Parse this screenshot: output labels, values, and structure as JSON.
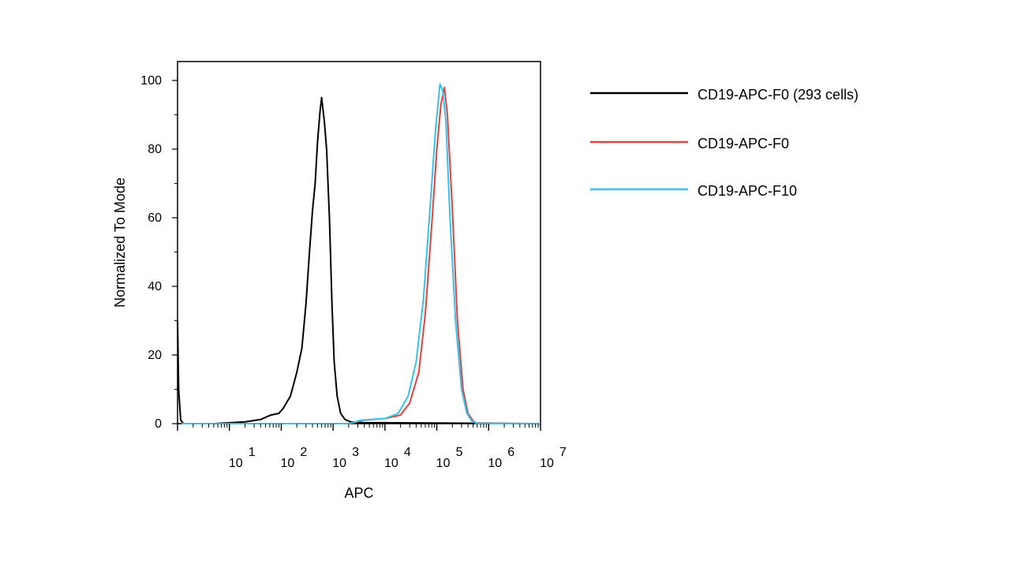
{
  "chart_data": {
    "type": "line",
    "xlabel": "APC",
    "ylabel": "Normalized To Mode",
    "x_scale": "log",
    "xlim": [
      1,
      10000000
    ],
    "ylim": [
      0,
      100
    ],
    "y_ticks": [
      "0",
      "20",
      "40",
      "60",
      "80",
      "100"
    ],
    "x_ticks": [
      {
        "base": "10",
        "exp": "1"
      },
      {
        "base": "10",
        "exp": "2"
      },
      {
        "base": "10",
        "exp": "3"
      },
      {
        "base": "10",
        "exp": "4"
      },
      {
        "base": "10",
        "exp": "5"
      },
      {
        "base": "10",
        "exp": "6"
      },
      {
        "base": "10",
        "exp": "7"
      }
    ],
    "legend_position": "right",
    "series": [
      {
        "name": "CD19-APC-F0 (293 cells)",
        "color": "#000000",
        "points": [
          [
            1,
            30
          ],
          [
            1.05,
            10
          ],
          [
            1.15,
            1
          ],
          [
            1.3,
            0
          ],
          [
            5,
            0
          ],
          [
            20,
            0.5
          ],
          [
            40,
            1.2
          ],
          [
            63,
            2.5
          ],
          [
            90,
            3
          ],
          [
            110,
            4.5
          ],
          [
            150,
            8
          ],
          [
            200,
            15
          ],
          [
            250,
            22
          ],
          [
            300,
            35
          ],
          [
            350,
            50
          ],
          [
            400,
            62
          ],
          [
            450,
            70
          ],
          [
            500,
            82
          ],
          [
            560,
            91
          ],
          [
            600,
            95
          ],
          [
            680,
            88
          ],
          [
            750,
            80
          ],
          [
            850,
            60
          ],
          [
            950,
            35
          ],
          [
            1050,
            18
          ],
          [
            1200,
            8
          ],
          [
            1400,
            3
          ],
          [
            1700,
            1.2
          ],
          [
            2200,
            0.5
          ],
          [
            3500,
            0.3
          ],
          [
            10000000,
            0
          ]
        ]
      },
      {
        "name": "CD19-APC-F0",
        "color": "#e8403a",
        "points": [
          [
            1.2,
            0
          ],
          [
            2000,
            0
          ],
          [
            4000,
            1
          ],
          [
            10000,
            1.5
          ],
          [
            20000,
            2.5
          ],
          [
            30000,
            6
          ],
          [
            45000,
            15
          ],
          [
            60000,
            32
          ],
          [
            80000,
            58
          ],
          [
            100000,
            80
          ],
          [
            120000,
            93
          ],
          [
            140000,
            98
          ],
          [
            160000,
            90
          ],
          [
            200000,
            62
          ],
          [
            250000,
            30
          ],
          [
            320000,
            10
          ],
          [
            400000,
            3
          ],
          [
            500000,
            0.8
          ],
          [
            600000,
            0
          ],
          [
            10000000,
            0
          ]
        ]
      },
      {
        "name": "CD19-APC-F10",
        "color": "#30c4ee",
        "points": [
          [
            1.2,
            0
          ],
          [
            2000,
            0
          ],
          [
            3500,
            1
          ],
          [
            10000,
            1.5
          ],
          [
            18000,
            3
          ],
          [
            28000,
            8
          ],
          [
            40000,
            18
          ],
          [
            55000,
            36
          ],
          [
            75000,
            64
          ],
          [
            95000,
            86
          ],
          [
            115000,
            99
          ],
          [
            130000,
            97
          ],
          [
            150000,
            88
          ],
          [
            180000,
            60
          ],
          [
            230000,
            30
          ],
          [
            300000,
            10
          ],
          [
            380000,
            3
          ],
          [
            470000,
            0.8
          ],
          [
            600000,
            0
          ],
          [
            10000000,
            0
          ]
        ]
      }
    ]
  }
}
